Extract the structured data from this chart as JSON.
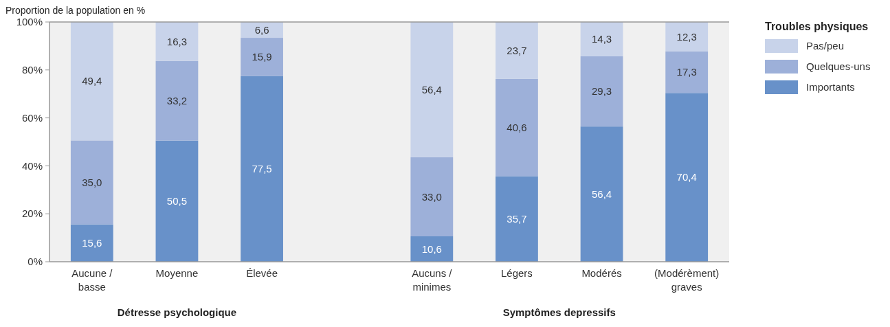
{
  "chart_data": {
    "type": "bar",
    "stacked": true,
    "ylabel": "Proportion de la population en %",
    "legend_title": "Troubles physiques",
    "legend": "right",
    "categories": [
      "Aucune / basse",
      "Moyenne",
      "Élevée",
      null,
      "Aucuns / minimes",
      "Légers",
      "Modérés",
      "(Modérèment) graves"
    ],
    "series": [
      {
        "name": "Importants",
        "color": "#6891c9",
        "values": [
          15.6,
          50.5,
          77.5,
          null,
          10.6,
          35.7,
          56.4,
          70.4
        ],
        "value_labels": [
          "15,6",
          "50,5",
          "77,5",
          null,
          "10,6",
          "35,7",
          "56,4",
          "70,4"
        ]
      },
      {
        "name": "Quelques-uns",
        "color": "#9db0d9",
        "values": [
          35.0,
          33.2,
          15.9,
          null,
          33.0,
          40.6,
          29.3,
          17.3
        ],
        "value_labels": [
          "35,0",
          "33,2",
          "15,9",
          null,
          "33,0",
          "40,6",
          "29,3",
          "17,3"
        ]
      },
      {
        "name": "Pas/peu",
        "color": "#c8d3ea",
        "values": [
          49.4,
          16.3,
          6.6,
          null,
          56.4,
          23.7,
          14.3,
          12.3
        ],
        "value_labels": [
          "49,4",
          "16,3",
          "6,6",
          null,
          "56,4",
          "23,7",
          "14,3",
          "12,3"
        ]
      }
    ],
    "ylim": [
      0,
      100
    ],
    "yticks": [
      {
        "value": 0,
        "label": "0%"
      },
      {
        "value": 20,
        "label": "20%"
      },
      {
        "value": 40,
        "label": "40%"
      },
      {
        "value": 60,
        "label": "60%"
      },
      {
        "value": 80,
        "label": "80%"
      },
      {
        "value": 100,
        "label": "100%"
      }
    ],
    "annotations": [
      "Détresse psychologique",
      "Symptômes depressifs"
    ]
  }
}
